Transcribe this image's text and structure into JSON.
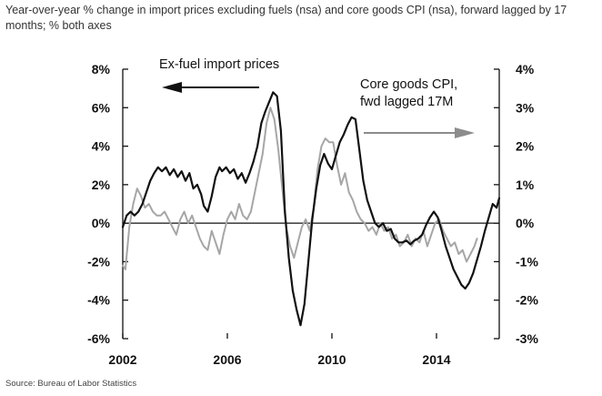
{
  "subtitle": "Year-over-year % change in import prices excluding fuels (nsa) and core goods CPI (nsa), forward lagged by 17 months; % both axes",
  "source": "Source: Bureau of Labor Statistics",
  "chart_data": {
    "type": "line",
    "title": "",
    "xlabel": "",
    "ylabel": "",
    "x_range": [
      2002,
      2016.4
    ],
    "x_ticks": [
      2002,
      2006,
      2010,
      2014
    ],
    "x_tick_labels": [
      "2002",
      "2006",
      "2010",
      "2014"
    ],
    "left_axis": {
      "range": [
        -6,
        8
      ],
      "ticks": [
        -6,
        -4,
        -2,
        0,
        2,
        4,
        6,
        8
      ],
      "tick_labels": [
        "-6%",
        "-4%",
        "-2%",
        "0%",
        "2%",
        "4%",
        "6%",
        "8%"
      ]
    },
    "right_axis": {
      "range": [
        -3,
        4
      ],
      "ticks": [
        -3,
        -2,
        -1,
        0,
        1,
        2,
        3,
        4
      ],
      "tick_labels": [
        "-3%",
        "-2%",
        "-1%",
        "0%",
        "1%",
        "2%",
        "3%",
        "4%"
      ]
    },
    "grid": false,
    "annotations": [
      {
        "text": "Ex-fuel import prices",
        "arrow": "left"
      },
      {
        "text": "Core goods CPI,",
        "arrow": ""
      },
      {
        "text": "fwd lagged 17M",
        "arrow": "right"
      }
    ],
    "series": [
      {
        "name": "Ex-fuel import prices",
        "axis": "left",
        "color": "#111111",
        "x": [
          2002.0,
          2002.15,
          2002.3,
          2002.45,
          2002.6,
          2002.75,
          2002.9,
          2003.05,
          2003.2,
          2003.35,
          2003.5,
          2003.65,
          2003.8,
          2003.95,
          2004.1,
          2004.25,
          2004.4,
          2004.55,
          2004.7,
          2004.85,
          2005.0,
          2005.1,
          2005.25,
          2005.4,
          2005.55,
          2005.7,
          2005.8,
          2005.95,
          2006.1,
          2006.25,
          2006.4,
          2006.55,
          2006.7,
          2006.85,
          2007.0,
          2007.15,
          2007.3,
          2007.45,
          2007.6,
          2007.75,
          2007.9,
          2008.05,
          2008.2,
          2008.35,
          2008.5,
          2008.65,
          2008.8,
          2008.95,
          2009.1,
          2009.25,
          2009.4,
          2009.55,
          2009.7,
          2009.85,
          2010.0,
          2010.15,
          2010.3,
          2010.45,
          2010.6,
          2010.75,
          2010.9,
          2011.05,
          2011.2,
          2011.35,
          2011.5,
          2011.65,
          2011.8,
          2011.95,
          2012.1,
          2012.25,
          2012.4,
          2012.55,
          2012.7,
          2012.85,
          2013.0,
          2013.15,
          2013.3,
          2013.45,
          2013.6,
          2013.75,
          2013.9,
          2014.05,
          2014.2,
          2014.35,
          2014.5,
          2014.65,
          2014.8,
          2014.95,
          2015.1,
          2015.25,
          2015.4,
          2015.55,
          2015.7,
          2015.85,
          2016.0,
          2016.15,
          2016.3,
          2016.4
        ],
        "values": [
          -0.2,
          0.4,
          0.6,
          0.4,
          0.6,
          1.0,
          1.6,
          2.2,
          2.6,
          2.9,
          2.7,
          2.9,
          2.5,
          2.8,
          2.4,
          2.7,
          2.2,
          2.6,
          1.8,
          2.0,
          1.5,
          0.9,
          0.6,
          1.4,
          2.4,
          2.9,
          2.7,
          2.9,
          2.6,
          2.8,
          2.3,
          2.6,
          2.1,
          2.6,
          3.2,
          4.0,
          5.2,
          5.8,
          6.3,
          6.8,
          6.6,
          4.8,
          0.6,
          -1.8,
          -3.5,
          -4.5,
          -5.3,
          -4.2,
          -2.0,
          0.2,
          1.8,
          3.0,
          3.6,
          3.1,
          2.8,
          3.5,
          4.2,
          4.6,
          5.1,
          5.5,
          5.4,
          3.8,
          2.2,
          1.2,
          0.6,
          0.0,
          -0.2,
          0.0,
          -0.4,
          -0.3,
          -0.8,
          -1.0,
          -1.0,
          -0.9,
          -1.1,
          -0.9,
          -0.8,
          -0.6,
          -0.1,
          0.3,
          0.6,
          0.3,
          -0.4,
          -1.2,
          -1.8,
          -2.4,
          -2.8,
          -3.2,
          -3.4,
          -3.1,
          -2.6,
          -1.9,
          -1.2,
          -0.4,
          0.3,
          1.0,
          0.8,
          1.3
        ]
      },
      {
        "name": "Core goods CPI, fwd lagged 17M",
        "axis": "right",
        "color": "#a6a6a6",
        "x": [
          2002.0,
          2002.1,
          2002.25,
          2002.4,
          2002.55,
          2002.7,
          2002.85,
          2003.0,
          2003.15,
          2003.3,
          2003.45,
          2003.6,
          2003.75,
          2003.9,
          2004.05,
          2004.2,
          2004.35,
          2004.5,
          2004.65,
          2004.8,
          2004.95,
          2005.1,
          2005.25,
          2005.4,
          2005.55,
          2005.7,
          2005.85,
          2006.0,
          2006.15,
          2006.3,
          2006.45,
          2006.6,
          2006.75,
          2006.9,
          2007.05,
          2007.2,
          2007.35,
          2007.5,
          2007.65,
          2007.8,
          2007.95,
          2008.1,
          2008.25,
          2008.4,
          2008.55,
          2008.7,
          2008.85,
          2009.0,
          2009.15,
          2009.3,
          2009.45,
          2009.6,
          2009.75,
          2009.9,
          2010.05,
          2010.2,
          2010.35,
          2010.5,
          2010.65,
          2010.8,
          2010.95,
          2011.1,
          2011.25,
          2011.4,
          2011.55,
          2011.7,
          2011.85,
          2012.0,
          2012.15,
          2012.3,
          2012.45,
          2012.6,
          2012.75,
          2012.9,
          2013.05,
          2013.2,
          2013.35,
          2013.5,
          2013.65,
          2013.8,
          2013.95,
          2014.1,
          2014.25,
          2014.4,
          2014.55,
          2014.7,
          2014.85,
          2015.0,
          2015.15,
          2015.3,
          2015.45,
          2015.55
        ],
        "values": [
          -1.1,
          -1.2,
          -0.1,
          0.5,
          0.9,
          0.7,
          0.4,
          0.5,
          0.3,
          0.2,
          0.2,
          0.3,
          0.1,
          -0.1,
          -0.3,
          0.1,
          0.3,
          0.0,
          0.2,
          -0.1,
          -0.4,
          -0.6,
          -0.7,
          -0.2,
          -0.5,
          -0.8,
          -0.3,
          0.1,
          0.3,
          0.1,
          0.5,
          0.2,
          0.1,
          0.3,
          0.8,
          1.3,
          1.8,
          2.6,
          3.0,
          2.7,
          1.9,
          0.9,
          -0.1,
          -0.6,
          -0.9,
          -0.5,
          -0.1,
          0.1,
          -0.2,
          0.4,
          1.4,
          2.0,
          2.2,
          2.1,
          2.1,
          1.5,
          1.0,
          1.3,
          0.8,
          0.6,
          0.3,
          0.1,
          0.0,
          -0.2,
          -0.1,
          -0.3,
          0.0,
          -0.2,
          -0.1,
          -0.4,
          -0.3,
          -0.6,
          -0.5,
          -0.3,
          -0.6,
          -0.4,
          -0.5,
          -0.2,
          -0.6,
          -0.3,
          0.0,
          0.1,
          -0.2,
          -0.4,
          -0.6,
          -0.5,
          -0.8,
          -0.7,
          -1.0,
          -0.8,
          -0.6,
          -0.4
        ]
      }
    ]
  }
}
